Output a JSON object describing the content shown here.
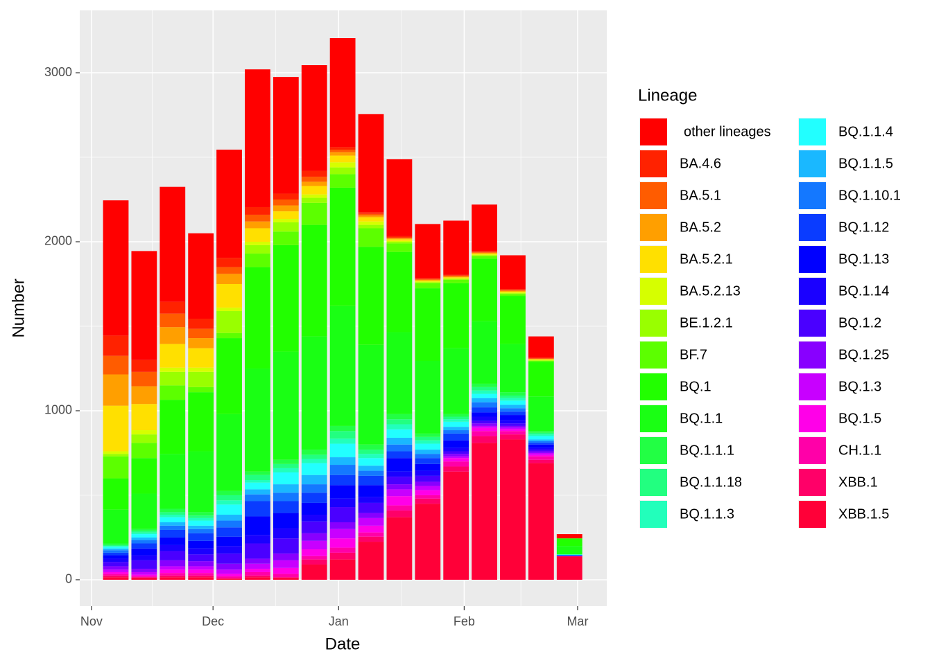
{
  "chart_data": {
    "type": "stacked_bar",
    "x_label": "Date",
    "y_label": "Number",
    "legend_title": "Lineage",
    "x": [
      6,
      13,
      20,
      27,
      34,
      41,
      48,
      55,
      62,
      69,
      76,
      83,
      90,
      97,
      104,
      111,
      118
    ],
    "xlim": [
      -2.9,
      127.2
    ],
    "xticks": [
      {
        "value": 0,
        "label": "Nov"
      },
      {
        "value": 30,
        "label": "Dec"
      },
      {
        "value": 61,
        "label": "Jan"
      },
      {
        "value": 92,
        "label": "Feb"
      },
      {
        "value": 120,
        "label": "Mar"
      }
    ],
    "ylim": [
      -156,
      3369
    ],
    "yticks": [
      0,
      1000,
      2000,
      3000
    ],
    "grid": true,
    "legend_position": "right",
    "legend_columns": 2,
    "series": [
      {
        "name": "other lineages",
        "color": "#FF0000",
        "values": [
          800,
          645,
          680,
          505,
          640,
          815,
          690,
          625,
          645,
          580,
          455,
          320,
          320,
          275,
          200,
          125,
          25
        ]
      },
      {
        "name": "BA.4.6",
        "color": "#FF2200",
        "values": [
          120,
          70,
          70,
          60,
          55,
          45,
          35,
          35,
          15,
          10,
          8,
          5,
          5,
          5,
          5,
          5,
          0
        ]
      },
      {
        "name": "BA.5.1",
        "color": "#FF5C00",
        "values": [
          110,
          85,
          80,
          55,
          40,
          40,
          35,
          30,
          15,
          10,
          5,
          5,
          5,
          5,
          5,
          3,
          0
        ]
      },
      {
        "name": "BA.5.2",
        "color": "#FF9F00",
        "values": [
          185,
          105,
          100,
          60,
          60,
          40,
          35,
          25,
          20,
          10,
          5,
          5,
          5,
          5,
          5,
          3,
          0
        ]
      },
      {
        "name": "BA.5.2.1",
        "color": "#FFE000",
        "values": [
          270,
          155,
          140,
          115,
          140,
          80,
          45,
          50,
          40,
          25,
          10,
          5,
          5,
          5,
          5,
          3,
          0
        ]
      },
      {
        "name": "BA.5.2.13",
        "color": "#D6FF00",
        "values": [
          15,
          25,
          25,
          25,
          20,
          20,
          20,
          20,
          30,
          20,
          5,
          5,
          5,
          5,
          5,
          3,
          0
        ]
      },
      {
        "name": "BE.1.2.1",
        "color": "#99FF00",
        "values": [
          15,
          50,
          80,
          90,
          130,
          50,
          55,
          30,
          40,
          20,
          10,
          5,
          5,
          5,
          5,
          3,
          0
        ]
      },
      {
        "name": "BF.7",
        "color": "#5CFF00",
        "values": [
          130,
          90,
          85,
          30,
          30,
          80,
          80,
          130,
          80,
          110,
          50,
          30,
          20,
          15,
          10,
          5,
          0
        ]
      },
      {
        "name": "BQ.1",
        "color": "#22FF00",
        "values": [
          185,
          210,
          320,
          350,
          450,
          600,
          630,
          660,
          700,
          580,
          475,
          430,
          385,
          370,
          285,
          205,
          45
        ]
      },
      {
        "name": "BQ.1.1",
        "color": "#1AFF14",
        "values": [
          200,
          210,
          325,
          360,
          455,
          610,
          640,
          670,
          710,
          590,
          485,
          430,
          390,
          370,
          285,
          205,
          50
        ]
      },
      {
        "name": "BQ.1.1.1",
        "color": "#22FF44",
        "values": [
          10,
          10,
          20,
          20,
          25,
          20,
          25,
          30,
          30,
          30,
          30,
          20,
          15,
          20,
          20,
          10,
          0
        ]
      },
      {
        "name": "BQ.1.1.18",
        "color": "#22FF80",
        "values": [
          5,
          10,
          15,
          15,
          30,
          30,
          25,
          25,
          45,
          25,
          30,
          20,
          15,
          20,
          15,
          10,
          0
        ]
      },
      {
        "name": "BQ.1.1.3",
        "color": "#22FFBB",
        "values": [
          5,
          10,
          15,
          15,
          25,
          15,
          25,
          25,
          30,
          25,
          30,
          20,
          15,
          20,
          15,
          10,
          0
        ]
      },
      {
        "name": "BQ.1.1.4",
        "color": "#22FFFF",
        "values": [
          10,
          20,
          30,
          30,
          60,
          40,
          70,
          70,
          80,
          45,
          50,
          35,
          30,
          25,
          25,
          20,
          5
        ]
      },
      {
        "name": "BQ.1.1.5",
        "color": "#1AB8FF",
        "values": [
          10,
          15,
          20,
          20,
          35,
          30,
          50,
          55,
          45,
          30,
          40,
          25,
          20,
          25,
          20,
          10,
          0
        ]
      },
      {
        "name": "BQ.1.10.1",
        "color": "#1478FF",
        "values": [
          15,
          20,
          25,
          25,
          40,
          40,
          50,
          50,
          60,
          30,
          40,
          25,
          20,
          30,
          20,
          10,
          0
        ]
      },
      {
        "name": "BQ.1.12",
        "color": "#0A3CFF",
        "values": [
          15,
          30,
          45,
          45,
          55,
          90,
          70,
          60,
          60,
          55,
          40,
          35,
          40,
          30,
          20,
          10,
          0
        ]
      },
      {
        "name": "BQ.1.13",
        "color": "#0000FF",
        "values": [
          20,
          40,
          45,
          45,
          55,
          110,
          90,
          70,
          80,
          70,
          80,
          40,
          45,
          25,
          30,
          20,
          5
        ]
      },
      {
        "name": "BQ.1.14",
        "color": "#1A00FF",
        "values": [
          20,
          30,
          35,
          35,
          45,
          50,
          60,
          40,
          50,
          35,
          30,
          30,
          20,
          25,
          20,
          10,
          0
        ]
      },
      {
        "name": "BQ.1.2",
        "color": "#4A00FF",
        "values": [
          25,
          50,
          55,
          40,
          60,
          90,
          90,
          70,
          90,
          60,
          45,
          35,
          15,
          15,
          15,
          10,
          0
        ]
      },
      {
        "name": "BQ.1.25",
        "color": "#8800FF",
        "values": [
          20,
          20,
          35,
          30,
          35,
          30,
          40,
          45,
          40,
          30,
          30,
          25,
          15,
          15,
          10,
          10,
          0
        ]
      },
      {
        "name": "BQ.1.3",
        "color": "#C800FF",
        "values": [
          15,
          15,
          20,
          20,
          25,
          30,
          45,
          50,
          55,
          45,
          40,
          25,
          10,
          10,
          10,
          10,
          0
        ]
      },
      {
        "name": "BQ.1.5",
        "color": "#FF00E8",
        "values": [
          10,
          10,
          20,
          20,
          15,
          20,
          35,
          40,
          55,
          40,
          55,
          30,
          20,
          20,
          10,
          10,
          0
        ]
      },
      {
        "name": "CH.1.1",
        "color": "#FF00A8",
        "values": [
          10,
          5,
          15,
          15,
          10,
          20,
          20,
          20,
          30,
          25,
          30,
          20,
          30,
          30,
          20,
          20,
          0
        ]
      },
      {
        "name": "XBB.1",
        "color": "#FF0068",
        "values": [
          10,
          5,
          10,
          10,
          5,
          10,
          5,
          30,
          40,
          30,
          40,
          30,
          30,
          40,
          30,
          20,
          5
        ]
      },
      {
        "name": "XBB.1.5",
        "color": "#FF0038",
        "values": [
          15,
          10,
          15,
          15,
          5,
          15,
          10,
          90,
          120,
          225,
          370,
          450,
          640,
          810,
          830,
          690,
          135
        ]
      }
    ]
  }
}
